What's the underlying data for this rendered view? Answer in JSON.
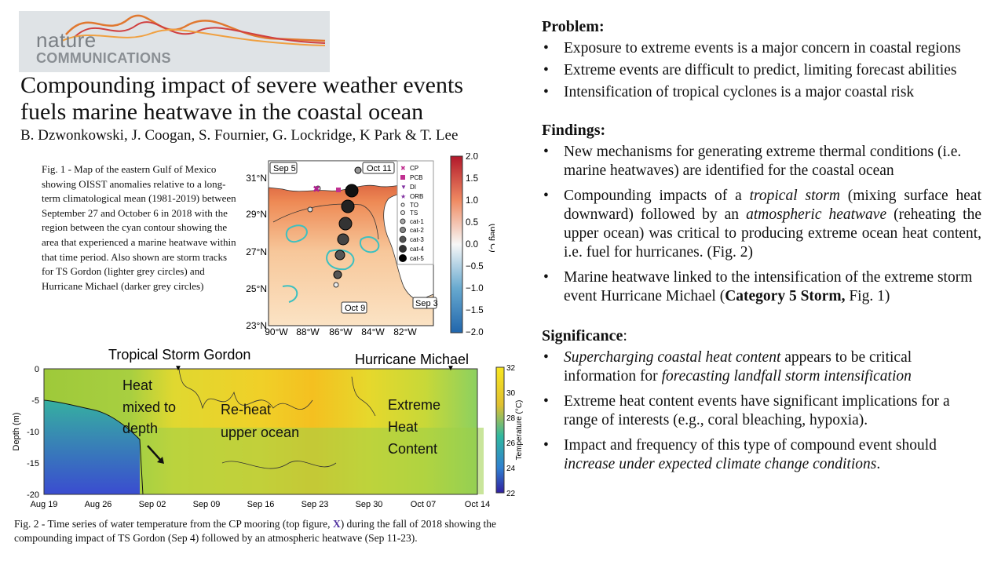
{
  "logo": {
    "line1": "nature",
    "line2": "COMMUNICATIONS"
  },
  "title": "Compounding impact of severe weather events fuels marine heatwave in the coastal ocean",
  "authors": "B. Dzwonkowski, J. Coogan, S. Fournier, G. Lockridge, K Park & T. Lee",
  "fig1_caption": "Fig. 1 - Map of the eastern Gulf of Mexico showing OISST anomalies relative to a long-term climatological mean (1981-2019) between September 27 and October 6 in 2018 with the region between the cyan contour showing the  area that experienced a marine heatwave within that time period. Also shown are storm tracks for TS Gordon (lighter grey circles) and Hurricane Michael (darker grey circles)",
  "map": {
    "date_labels": [
      "Sep 5",
      "Oct 11",
      "Oct 9",
      "Sep 3"
    ],
    "lat_labels": [
      "31°N",
      "29°N",
      "27°N",
      "25°N",
      "23°N"
    ],
    "lon_labels": [
      "90°W",
      "88°W",
      "86°W",
      "84°W",
      "82°W"
    ],
    "legend": [
      "CP",
      "PCB",
      "DI",
      "ORB",
      "TO",
      "TS",
      "cat-1",
      "cat-2",
      "cat-3",
      "cat-4",
      "cat-5"
    ],
    "colorbar_ticks": [
      "2.0",
      "1.5",
      "1.0",
      "0.5",
      "0.0",
      "−0.5",
      "−1.0",
      "−1.5",
      "−2.0"
    ],
    "colorbar_label": "(deg C)"
  },
  "fig2": {
    "event_labels": [
      "Tropical Storm Gordon",
      "Hurricane Michael"
    ],
    "annotations": [
      "Heat",
      "mixed to",
      "depth",
      "Re-heat",
      "upper ocean",
      "Extreme",
      "Heat",
      "Content"
    ],
    "y_ticks": [
      "0",
      "-5",
      "-10",
      "-15",
      "-20"
    ],
    "y_label": "Depth (m)",
    "x_ticks": [
      "Aug 19",
      "Aug 26",
      "Sep 02",
      "Sep 09",
      "Sep 16",
      "Sep 23",
      "Sep 30",
      "Oct 07",
      "Oct 14"
    ],
    "cbar_ticks": [
      "32",
      "30",
      "28",
      "26",
      "24",
      "22"
    ],
    "cbar_label": "Temperature (°C)"
  },
  "fig2_caption": {
    "pre": "Fig. 2 - Time series of  water temperature from the CP mooring (top figure, ",
    "mark": "X",
    "post": ") during the fall of 2018 showing the compounding impact of TS Gordon (Sep 4) followed by an atmospheric heatwave (Sep 11-23)."
  },
  "problem": {
    "heading": "Problem:",
    "items": [
      "Exposure to extreme events is a major concern in coastal regions",
      "Extreme events are difficult to predict, limiting forecast abilities",
      "Intensification of tropical cyclones is a major coastal risk"
    ]
  },
  "findings": {
    "heading": "Findings:",
    "item1": "New mechanisms for generating extreme thermal conditions (i.e. marine heatwaves) are identified for the coastal ocean",
    "item2": {
      "a": "Compounding impacts of a ",
      "b": "tropical storm",
      "c": " (mixing surface heat downward) followed by an ",
      "d": "atmospheric heatwave",
      "e": " (reheating the upper ocean) was critical to producing extreme ocean heat content, i.e. fuel for hurricanes. (Fig. 2)"
    },
    "item3": {
      "a": "Marine heatwave linked to the intensification of the extreme storm event Hurricane Michael (",
      "b": "Category 5 Storm,",
      "c": " Fig. 1)"
    }
  },
  "significance": {
    "heading": "Significance",
    "colon": ":",
    "item1": {
      "a": "Supercharging coastal heat content",
      "b": " appears to be  critical information for ",
      "c": "forecasting landfall storm intensification"
    },
    "item2": "Extreme heat content events have significant implications for a range of interests (e.g., coral bleaching, hypoxia).",
    "item3": {
      "a": "Impact and frequency of this type of compound event should ",
      "b": "increase under expected climate change conditions",
      "c": "."
    }
  }
}
